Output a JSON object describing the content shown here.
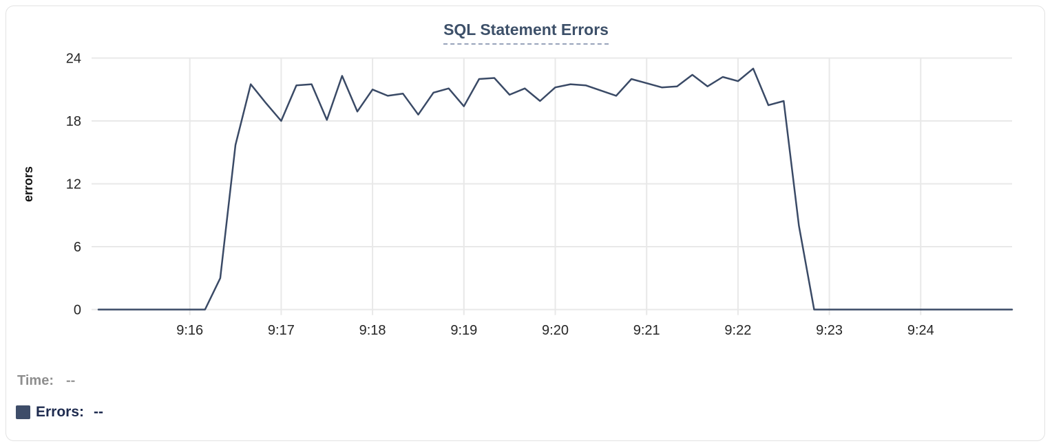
{
  "chart_data": {
    "type": "line",
    "title": "SQL Statement Errors",
    "xlabel": "",
    "ylabel": "errors",
    "y_ticks": [
      0,
      6,
      12,
      18,
      24
    ],
    "ylim": [
      0,
      24
    ],
    "x_ticks": [
      "9:16",
      "9:17",
      "9:18",
      "9:19",
      "9:20",
      "9:21",
      "9:22",
      "9:23",
      "9:24"
    ],
    "x_range": [
      "9:15:00",
      "9:25:00"
    ],
    "grid": true,
    "legend_position": "bottom-left",
    "series": [
      {
        "name": "Errors",
        "color": "#3a4a66",
        "points": [
          [
            "9:15:00",
            0
          ],
          [
            "9:15:10",
            0
          ],
          [
            "9:15:20",
            0
          ],
          [
            "9:15:30",
            0
          ],
          [
            "9:15:40",
            0
          ],
          [
            "9:15:50",
            0
          ],
          [
            "9:16:00",
            0
          ],
          [
            "9:16:10",
            0
          ],
          [
            "9:16:20",
            3
          ],
          [
            "9:16:30",
            15.7
          ],
          [
            "9:16:40",
            21.5
          ],
          [
            "9:16:50",
            19.7
          ],
          [
            "9:17:00",
            18
          ],
          [
            "9:17:10",
            21.4
          ],
          [
            "9:17:20",
            21.5
          ],
          [
            "9:17:30",
            18.1
          ],
          [
            "9:17:40",
            22.3
          ],
          [
            "9:17:50",
            18.9
          ],
          [
            "9:18:00",
            21
          ],
          [
            "9:18:10",
            20.4
          ],
          [
            "9:18:20",
            20.6
          ],
          [
            "9:18:30",
            18.6
          ],
          [
            "9:18:40",
            20.7
          ],
          [
            "9:18:50",
            21.1
          ],
          [
            "9:19:00",
            19.4
          ],
          [
            "9:19:10",
            22
          ],
          [
            "9:19:20",
            22.1
          ],
          [
            "9:19:30",
            20.5
          ],
          [
            "9:19:40",
            21.1
          ],
          [
            "9:19:50",
            19.9
          ],
          [
            "9:20:00",
            21.2
          ],
          [
            "9:20:10",
            21.5
          ],
          [
            "9:20:20",
            21.4
          ],
          [
            "9:20:30",
            20.9
          ],
          [
            "9:20:40",
            20.4
          ],
          [
            "9:20:50",
            22
          ],
          [
            "9:21:00",
            21.6
          ],
          [
            "9:21:10",
            21.2
          ],
          [
            "9:21:20",
            21.3
          ],
          [
            "9:21:30",
            22.4
          ],
          [
            "9:21:40",
            21.3
          ],
          [
            "9:21:50",
            22.2
          ],
          [
            "9:22:00",
            21.8
          ],
          [
            "9:22:10",
            23
          ],
          [
            "9:22:20",
            19.5
          ],
          [
            "9:22:30",
            19.9
          ],
          [
            "9:22:40",
            8
          ],
          [
            "9:22:50",
            0
          ],
          [
            "9:23:00",
            0
          ],
          [
            "9:23:10",
            0
          ],
          [
            "9:23:20",
            0
          ],
          [
            "9:23:30",
            0
          ],
          [
            "9:23:40",
            0
          ],
          [
            "9:23:50",
            0
          ],
          [
            "9:24:00",
            0
          ],
          [
            "9:24:10",
            0
          ],
          [
            "9:24:20",
            0
          ],
          [
            "9:24:30",
            0
          ],
          [
            "9:24:40",
            0
          ],
          [
            "9:24:50",
            0
          ],
          [
            "9:25:00",
            0
          ]
        ]
      }
    ]
  },
  "tooltip": {
    "time_label": "Time:",
    "time_value": "--",
    "errors_label": "Errors:",
    "errors_value": "--"
  },
  "colors": {
    "line": "#3a4a66",
    "swatch": "#3e4d69",
    "title": "#3d5069",
    "title_underline": "#97a3ba",
    "grid": "#e8e8e8",
    "tick_text": "#262626",
    "axis_title_text": "#111111",
    "time_label_text": "#8e8e8e",
    "errors_label_text": "#1e2b4f",
    "card_border": "#e2e2e2",
    "background": "#ffffff"
  }
}
